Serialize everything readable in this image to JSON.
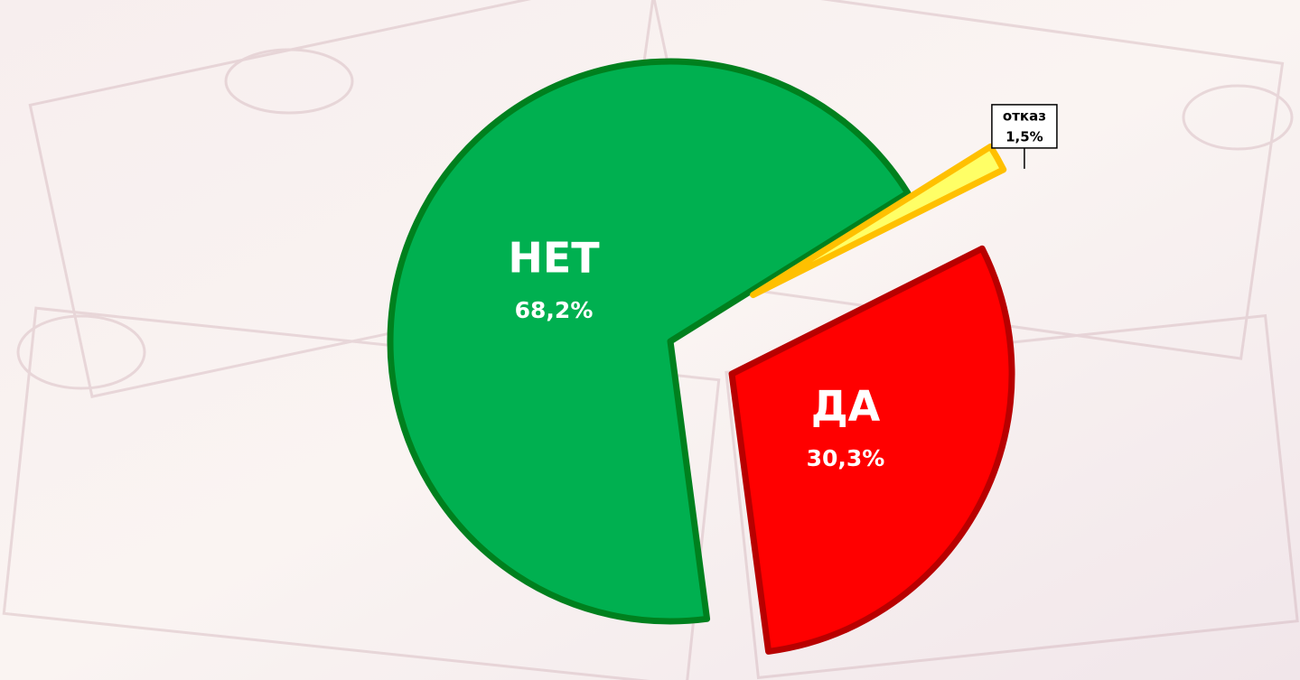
{
  "chart_data": {
    "type": "pie",
    "categories": [
      "НЕТ",
      "ДА",
      "отказ"
    ],
    "values": [
      68.2,
      30.3,
      1.5
    ],
    "value_labels": [
      "68,2%",
      "30,3%",
      "1,5%"
    ],
    "colors": [
      "#00b050",
      "#ff0000",
      "#ffff66"
    ],
    "edge_colors": [
      "#00801e",
      "#b80000",
      "#ffc000"
    ]
  }
}
